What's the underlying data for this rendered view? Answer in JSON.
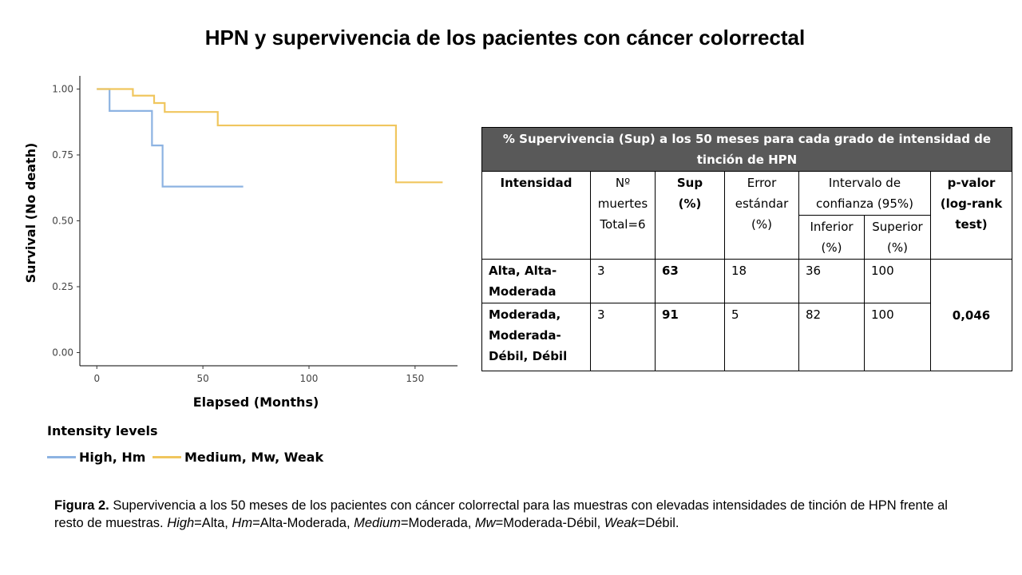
{
  "title": "HPN y supervivencia de los pacientes con cáncer colorrectal",
  "chart_data": {
    "type": "line",
    "subtype": "kaplan-meier step",
    "xlabel": "Elapsed (Months)",
    "ylabel": "Survival (No death)",
    "xlim": [
      -8,
      170
    ],
    "ylim": [
      -0.05,
      1.05
    ],
    "xticks": [
      "0",
      "50",
      "100",
      "150"
    ],
    "xtick_values": [
      0,
      50,
      100,
      150
    ],
    "yticks": [
      "0.00",
      "0.25",
      "0.50",
      "0.75",
      "1.00"
    ],
    "ytick_values": [
      0,
      0.25,
      0.5,
      0.75,
      1.0
    ],
    "grid": false,
    "legend_title": "Intensity levels",
    "legend_position": "bottom-left",
    "series": [
      {
        "name": "High, Hm",
        "color": "#8DB3E2",
        "x": [
          0,
          6,
          6,
          26,
          26,
          31,
          31,
          69
        ],
        "y": [
          1.0,
          1.0,
          0.917,
          0.917,
          0.786,
          0.786,
          0.63,
          0.63
        ]
      },
      {
        "name": "Medium, Mw, Weak",
        "color": "#F0C65E",
        "x": [
          0,
          17,
          17,
          27,
          27,
          32,
          32,
          57,
          57,
          141,
          141,
          163
        ],
        "y": [
          1.0,
          1.0,
          0.975,
          0.975,
          0.947,
          0.947,
          0.913,
          0.913,
          0.862,
          0.862,
          0.646,
          0.646
        ]
      }
    ]
  },
  "table": {
    "header": "% Supervivencia (Sup) a los 50 meses para cada grado de intensidad de tinción de HPN",
    "columns": {
      "intensidad": "Intensidad",
      "muertes_1": "Nº",
      "muertes_2": "muertes",
      "muertes_3": "Total=6",
      "sup_1": "Sup",
      "sup_2": "(%)",
      "error_1": "Error",
      "error_2": "estándar",
      "error_3": "(%)",
      "intervalo_1": "Intervalo de",
      "intervalo_2": "confianza (95%)",
      "inferior_1": "Inferior",
      "inferior_2": "(%)",
      "superior_1": "Superior",
      "superior_2": "(%)",
      "pvalor_1": "p-valor",
      "pvalor_2": "(log-rank",
      "pvalor_3": "test)"
    },
    "rows": [
      {
        "intensidad_lines": [
          "Alta, Alta-",
          "Moderada"
        ],
        "muertes": "3",
        "sup": "63",
        "error": "18",
        "inferior": "36",
        "superior": "100"
      },
      {
        "intensidad_lines": [
          "Moderada,",
          "Moderada-",
          "Débil, Débil"
        ],
        "muertes": "3",
        "sup": "91",
        "error": "5",
        "inferior": "82",
        "superior": "100"
      }
    ],
    "p_valor": "0,046"
  },
  "caption": {
    "label": "Figura 2.",
    "text_1": " Supervivencia a los 50 meses de los pacientes con cáncer colorrectal para las muestras con elevadas intensidades de tinción de HPN frente al resto de muestras. ",
    "high": "High",
    "eq_high": "=Alta, ",
    "hm": "Hm",
    "eq_hm": "=Alta-Moderada, ",
    "medium": "Medium",
    "eq_medium": "=Moderada, ",
    "mw": "Mw",
    "eq_mw": "=Moderada-Débil, ",
    "weak": "Weak",
    "eq_weak": "=Débil."
  }
}
